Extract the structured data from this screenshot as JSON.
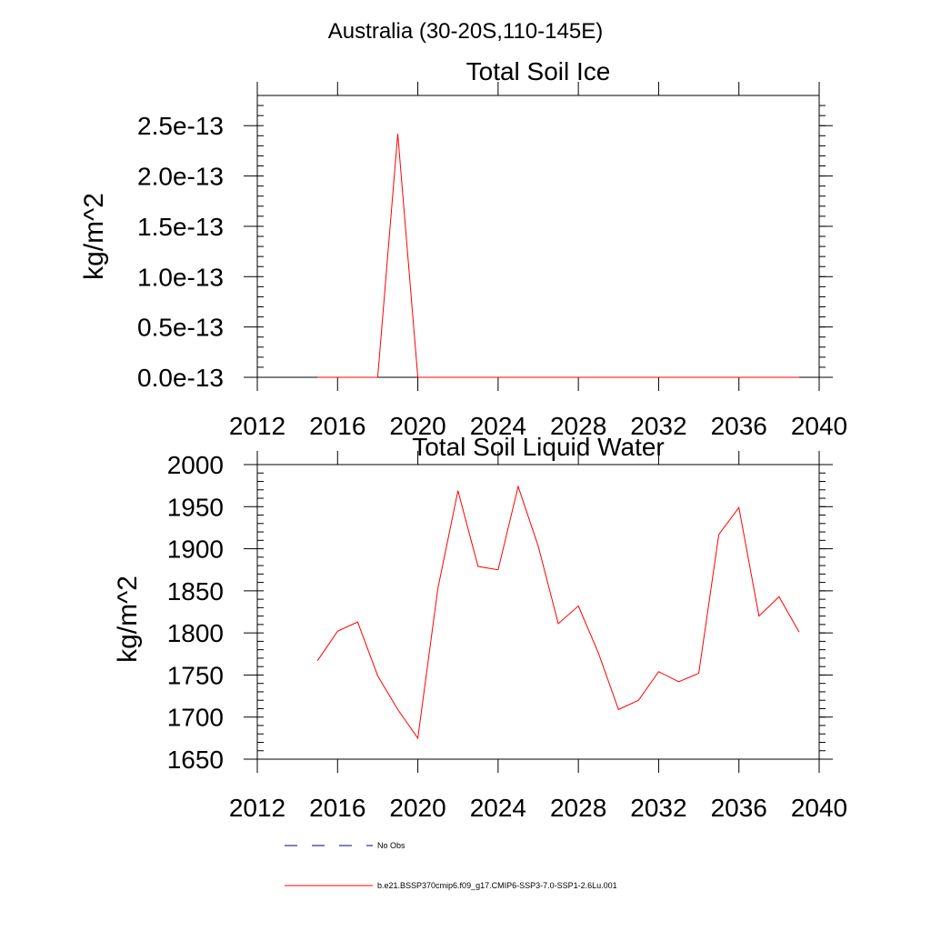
{
  "figure": {
    "title": "Australia (30-20S,110-145E)"
  },
  "chart_data": [
    {
      "type": "line",
      "title": "Total Soil Ice",
      "xlabel": "",
      "ylabel": "kg/m^2",
      "xlim": [
        2012,
        2040
      ],
      "ylim": [
        0,
        2.8e-13
      ],
      "xticks": [
        2012,
        2016,
        2020,
        2024,
        2028,
        2032,
        2036,
        2040
      ],
      "xtick_labels": [
        "2012",
        "2016",
        "2020",
        "2024",
        "2028",
        "2032",
        "2036",
        "2040"
      ],
      "yticks": [
        0,
        5e-14,
        1e-13,
        1.5e-13,
        2e-13,
        2.5e-13
      ],
      "ytick_labels": [
        "0.0e-13",
        "0.5e-13",
        "1.0e-13",
        "1.5e-13",
        "2.0e-13",
        "2.5e-13"
      ],
      "series": [
        {
          "name": "b.e21.BSSP370cmip6.f09_g17.CMIP6-SSP3-7.0-SSP1-2.6Lu.001",
          "color": "#ff0000",
          "x": [
            2015,
            2016,
            2017,
            2018,
            2019,
            2020,
            2021,
            2022,
            2023,
            2024,
            2025,
            2026,
            2027,
            2028,
            2029,
            2030,
            2031,
            2032,
            2033,
            2034,
            2035,
            2036,
            2037,
            2038,
            2039
          ],
          "y": [
            0,
            0,
            0,
            0,
            2.42e-13,
            0,
            0,
            0,
            0,
            0,
            0,
            0,
            0,
            0,
            0,
            0,
            0,
            0,
            0,
            0,
            0,
            0,
            0,
            0,
            0
          ]
        }
      ]
    },
    {
      "type": "line",
      "title": "Total Soil Liquid Water",
      "xlabel": "",
      "ylabel": "kg/m^2",
      "xlim": [
        2012,
        2040
      ],
      "ylim": [
        1650,
        2000
      ],
      "xticks": [
        2012,
        2016,
        2020,
        2024,
        2028,
        2032,
        2036,
        2040
      ],
      "xtick_labels": [
        "2012",
        "2016",
        "2020",
        "2024",
        "2028",
        "2032",
        "2036",
        "2040"
      ],
      "yticks": [
        1650,
        1700,
        1750,
        1800,
        1850,
        1900,
        1950,
        2000
      ],
      "ytick_labels": [
        "1650",
        "1700",
        "1750",
        "1800",
        "1850",
        "1900",
        "1950",
        "2000"
      ],
      "series": [
        {
          "name": "b.e21.BSSP370cmip6.f09_g17.CMIP6-SSP3-7.0-SSP1-2.6Lu.001",
          "color": "#ff0000",
          "x": [
            2015,
            2016,
            2017,
            2018,
            2019,
            2020,
            2021,
            2022,
            2023,
            2024,
            2025,
            2026,
            2027,
            2028,
            2029,
            2030,
            2031,
            2032,
            2033,
            2034,
            2035,
            2036,
            2037,
            2038,
            2039
          ],
          "y": [
            1767,
            1802,
            1813,
            1749,
            1709,
            1675,
            1853,
            1969,
            1879,
            1875,
            1974,
            1903,
            1811,
            1832,
            1776,
            1709,
            1720,
            1754,
            1742,
            1752,
            1917,
            1949,
            1820,
            1843,
            1801
          ]
        }
      ]
    }
  ],
  "legend": {
    "items": [
      {
        "label": "No Obs",
        "style": "dashed",
        "color": "#00008b"
      },
      {
        "label": "b.e21.BSSP370cmip6.f09_g17.CMIP6-SSP3-7.0-SSP1-2.6Lu.001",
        "style": "solid",
        "color": "#ff0000"
      }
    ]
  }
}
